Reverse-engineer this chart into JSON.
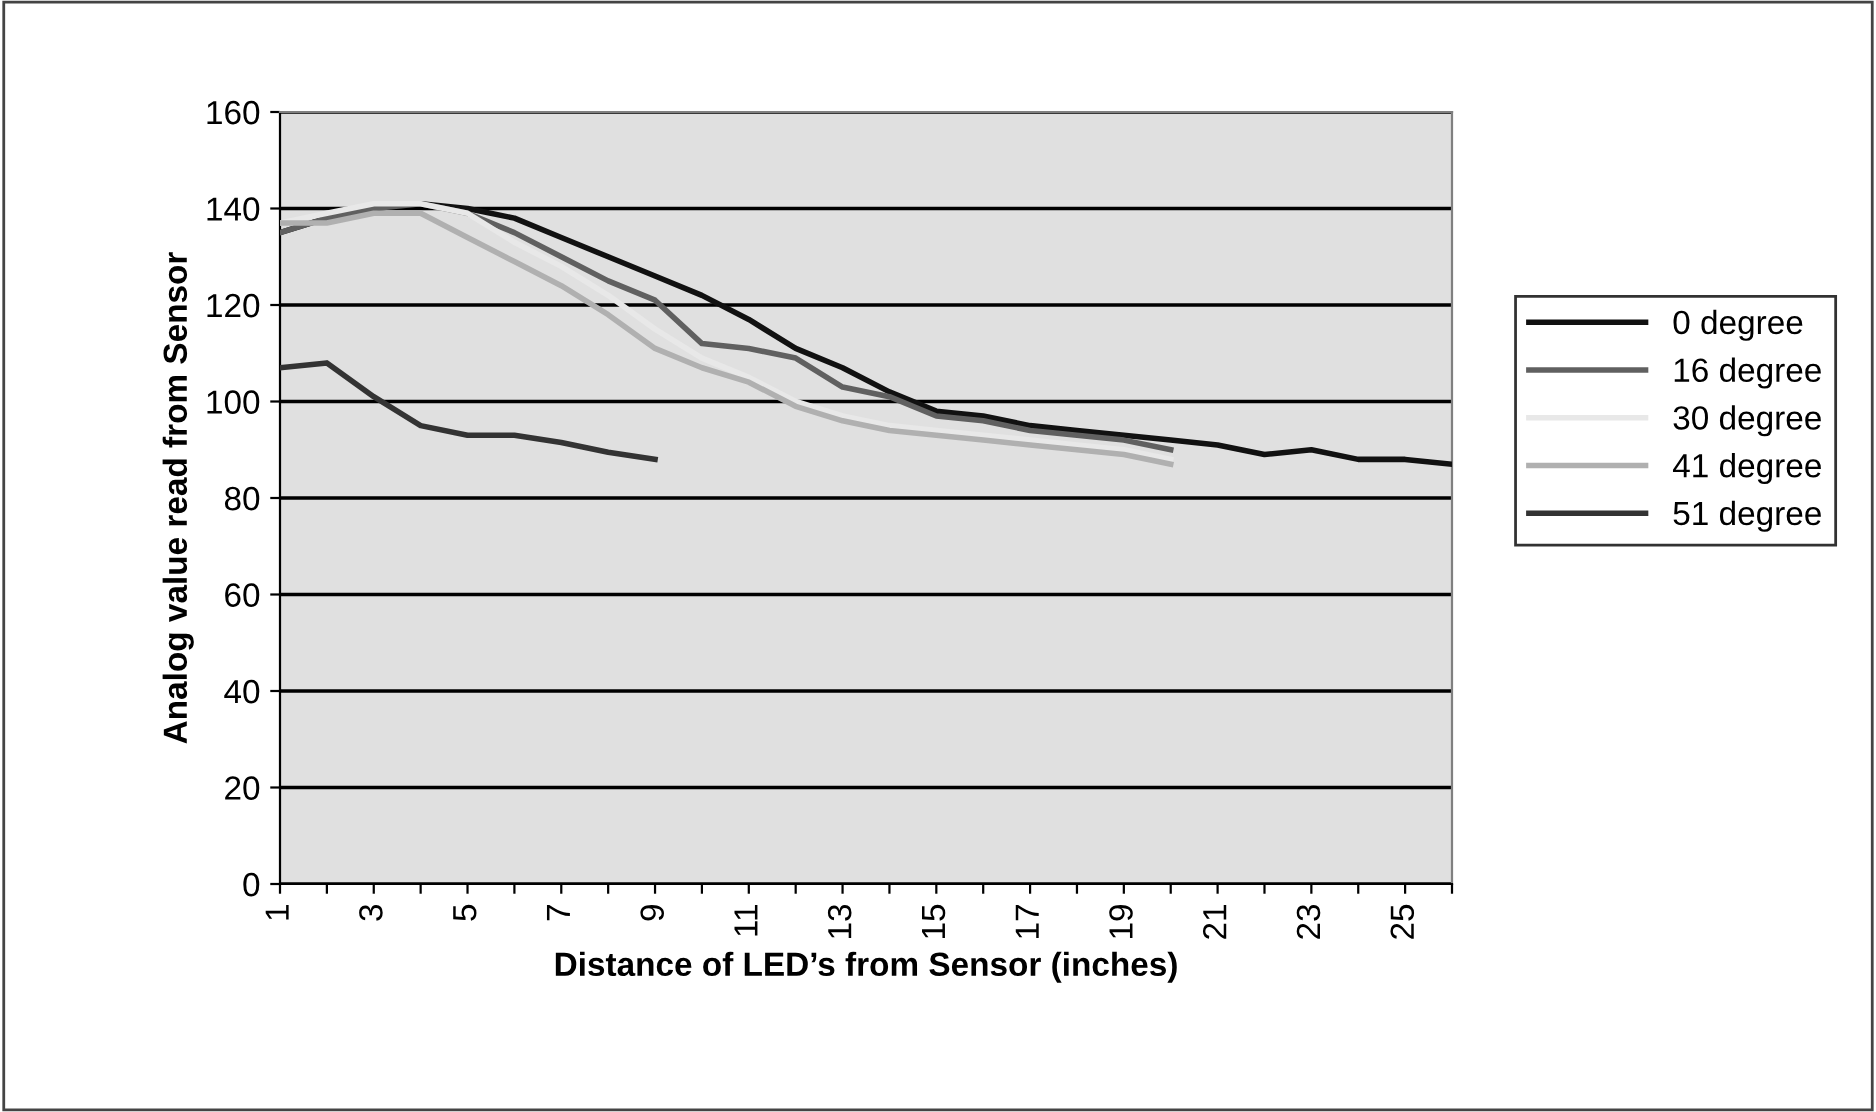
{
  "chart_data": {
    "type": "line",
    "xlabel": "Distance of LED’s from Sensor (inches)",
    "ylabel": "Analog value read from Sensor",
    "xlim": [
      1,
      26
    ],
    "xticks": [
      1,
      {
        "value": 2,
        "label": null
      },
      3,
      {
        "value": 4,
        "label": null
      },
      5,
      {
        "value": 6,
        "label": null
      },
      7,
      {
        "value": 8,
        "label": null
      },
      9,
      {
        "value": 10,
        "label": null
      },
      11,
      {
        "value": 12,
        "label": null
      },
      13,
      {
        "value": 14,
        "label": null
      },
      15,
      {
        "value": 16,
        "label": null
      },
      17,
      {
        "value": 18,
        "label": null
      },
      19,
      {
        "value": 20,
        "label": null
      },
      21,
      {
        "value": 22,
        "label": null
      },
      23,
      {
        "value": 24,
        "label": null
      },
      25,
      {
        "value": 26,
        "label": null
      }
    ],
    "ylim": [
      0,
      160
    ],
    "yticks": [
      0,
      20,
      40,
      60,
      80,
      100,
      120,
      140,
      160
    ],
    "grid": "y",
    "legend": "right",
    "marker": "none",
    "line_style": "solid",
    "series": [
      {
        "name": "0 degree",
        "color": "#111111",
        "x": [
          1,
          2,
          3,
          4,
          5,
          6,
          7,
          8,
          9,
          10,
          11,
          12,
          13,
          14,
          15,
          16,
          17,
          18,
          19,
          20,
          21,
          22,
          23,
          24,
          25,
          26
        ],
        "values": [
          135,
          138,
          140,
          141,
          140,
          138,
          134,
          130,
          126,
          122,
          117,
          111,
          107,
          102,
          98,
          97,
          95,
          94,
          93,
          92,
          91,
          89,
          90,
          88,
          88,
          87
        ]
      },
      {
        "name": "16 degree",
        "color": "#606060",
        "x": [
          1,
          2,
          3,
          4,
          5,
          6,
          7,
          8,
          9,
          10,
          11,
          12,
          13,
          14,
          15,
          16,
          17,
          18,
          19,
          20
        ],
        "values": [
          135,
          138,
          140,
          141,
          139,
          135,
          130,
          125,
          121,
          112,
          111,
          109,
          103,
          101,
          97,
          96,
          94,
          93,
          92,
          90
        ]
      },
      {
        "name": "30 degree",
        "color": "#e8e8e8",
        "x": [
          1,
          2,
          3,
          4,
          5,
          6,
          7,
          8,
          9,
          10,
          11,
          12,
          13,
          14,
          15,
          16,
          17,
          18,
          19,
          20
        ],
        "values": [
          137,
          139,
          141,
          141,
          139,
          133,
          128,
          122,
          115,
          109,
          105,
          100,
          97,
          95,
          94,
          93,
          92,
          91,
          90,
          88
        ]
      },
      {
        "name": "41 degree",
        "color": "#b0b0b0",
        "x": [
          1,
          2,
          3,
          4,
          5,
          6,
          7,
          8,
          9,
          10,
          11,
          12,
          13,
          14,
          15,
          16,
          17,
          18,
          19,
          20
        ],
        "values": [
          137,
          137,
          139,
          139,
          134,
          129,
          124,
          118,
          111,
          107,
          104,
          99,
          96,
          94,
          93,
          92,
          91,
          90,
          89,
          87
        ]
      },
      {
        "name": "51 degree",
        "color": "#333333",
        "x": [
          1,
          2,
          3,
          4,
          5,
          6,
          7,
          8,
          9
        ],
        "values": [
          107,
          108,
          101,
          95,
          93,
          93,
          91.5,
          89.5,
          88
        ]
      }
    ]
  }
}
